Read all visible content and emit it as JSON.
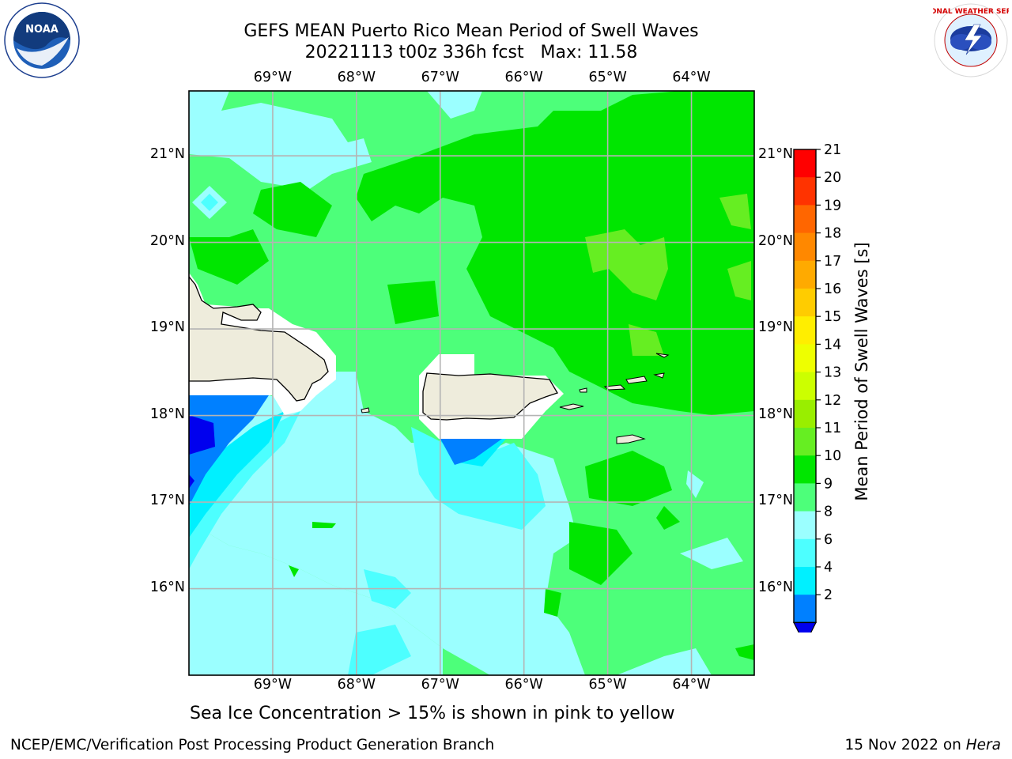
{
  "title": {
    "line1": "GEFS MEAN Puerto Rico Mean Period of Swell Waves",
    "line2": "20221113 t00z 336h fcst   Max: 11.58"
  },
  "map": {
    "lon_labels": [
      "69°W",
      "68°W",
      "67°W",
      "66°W",
      "65°W",
      "64°W"
    ],
    "lat_labels": [
      "21°N",
      "20°N",
      "19°N",
      "18°N",
      "17°N",
      "16°N"
    ],
    "lon_values": [
      -69,
      -68,
      -67,
      -66,
      -65,
      -64
    ],
    "lat_values": [
      21,
      20,
      19,
      18,
      17,
      16
    ],
    "extent": {
      "lon_min": -70.0,
      "lon_max": -63.25,
      "lat_min": 15.0,
      "lat_max": 21.75
    },
    "colors": {
      "ocean_light": "#9bffff",
      "ocean_mid": "#4dff7a",
      "ocean_green": "#00e600",
      "land": "#eeecdc",
      "grid": "#b4b4b4"
    }
  },
  "colorbar": {
    "label": "Mean Period of Swell Waves [s]",
    "ticks": [
      "21",
      "20",
      "19",
      "18",
      "17",
      "16",
      "15",
      "14",
      "13",
      "12",
      "11",
      "10",
      "9",
      "8",
      "6",
      "4",
      "2"
    ],
    "colors": [
      "#ff0000",
      "#ff3300",
      "#ff6600",
      "#ff8800",
      "#ffaa00",
      "#ffcc00",
      "#ffee00",
      "#eeff00",
      "#ccff00",
      "#99ee00",
      "#66ee22",
      "#00e600",
      "#4dff7a",
      "#9bffff",
      "#4dffff",
      "#00f0ff",
      "#0080ff"
    ],
    "extend_color": "#0000ee"
  },
  "note": "Sea Ice Concentration > 15% is shown in pink to yellow",
  "footer": {
    "left": "NCEP/EMC/Verification Post Processing Product Generation Branch",
    "right_prefix": "15 Nov 2022 on ",
    "right_machine": "Hera"
  },
  "logos": {
    "noaa_text": "NOAA",
    "nws_text": "NATIONAL WEATHER SERVICE"
  }
}
